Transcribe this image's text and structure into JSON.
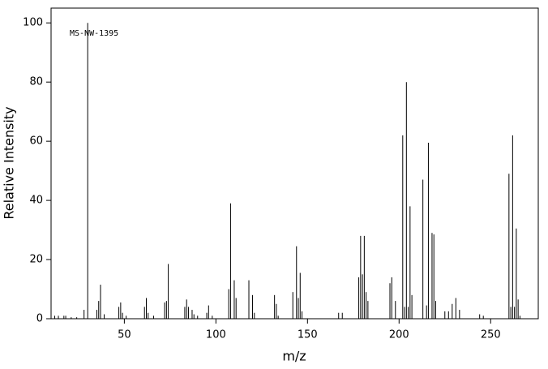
{
  "chart_data": {
    "type": "stem",
    "annotation": "MS-NW-1395",
    "xlabel": "m/z",
    "ylabel": "Relative Intensity",
    "xlim": [
      10,
      276
    ],
    "ylim": [
      0,
      105
    ],
    "xticks": [
      50,
      100,
      150,
      200,
      250
    ],
    "yticks": [
      0,
      20,
      40,
      60,
      80,
      100
    ],
    "color": "#000000",
    "x": [
      12,
      14,
      17,
      18,
      21,
      24,
      28,
      30,
      35,
      36,
      37,
      39,
      47,
      48,
      49,
      51,
      61,
      62,
      63,
      66,
      72,
      73,
      74,
      83,
      84,
      85,
      87,
      88,
      90,
      95,
      96,
      98,
      107,
      108,
      110,
      111,
      118,
      120,
      121,
      132,
      133,
      134,
      142,
      144,
      145,
      146,
      147,
      167,
      169,
      178,
      179,
      180,
      181,
      182,
      183,
      195,
      196,
      198,
      202,
      203,
      204,
      205,
      206,
      207,
      213,
      215,
      216,
      218,
      219,
      220,
      225,
      227,
      229,
      231,
      233,
      244,
      246,
      260,
      261,
      262,
      263,
      264,
      265,
      266
    ],
    "values": [
      1,
      1,
      1,
      1,
      0.5,
      0.5,
      3,
      100,
      3,
      6,
      11.5,
      1.5,
      4,
      5.5,
      2,
      1,
      4,
      7,
      2,
      1,
      5.5,
      6,
      18.5,
      4,
      6.5,
      4,
      3,
      1.5,
      1,
      2,
      4.5,
      1,
      10,
      39,
      13,
      7,
      13,
      8,
      2,
      8,
      5,
      1,
      9,
      24.5,
      7,
      15.5,
      2.5,
      2,
      2,
      14,
      28,
      15,
      28,
      9,
      6,
      12,
      14,
      6,
      62,
      4,
      80,
      4,
      38,
      8,
      47,
      4.5,
      59.5,
      29,
      28.5,
      6,
      2.5,
      2.5,
      5,
      7,
      3,
      1.5,
      1,
      49,
      4,
      62,
      4,
      30.5,
      6.5,
      1
    ]
  }
}
